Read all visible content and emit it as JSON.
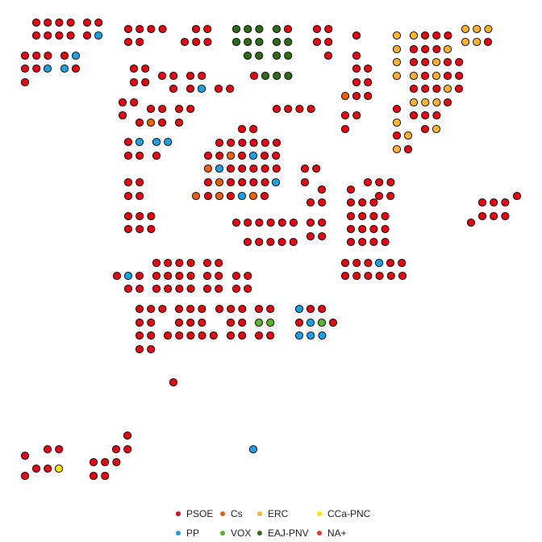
{
  "chart_data": {
    "type": "scatter",
    "description_kind": "dot map of Spanish Congress seats by province",
    "title": "",
    "xlabel": "",
    "ylabel": "",
    "grid": false,
    "axes_visible": false,
    "legend_position": "bottom-center",
    "dot_outline": "#000000",
    "parties": [
      {
        "name": "PSOE",
        "color": "#E30613"
      },
      {
        "name": "PP",
        "color": "#1BA1E2"
      },
      {
        "name": "Cs",
        "color": "#EB6109"
      },
      {
        "name": "VOX",
        "color": "#5AB12E"
      },
      {
        "name": "ERC",
        "color": "#FFB232"
      },
      {
        "name": "EAJ-PNV",
        "color": "#2E6B14"
      },
      {
        "name": "CCa-PNC",
        "color": "#FFE500"
      },
      {
        "name": "NA+",
        "color": "#E33B2E"
      }
    ],
    "rows": [
      {
        "y": 28,
        "x0": 45,
        "n": 4,
        "p": "PSOE"
      },
      {
        "y": 28,
        "x0": 108,
        "n": 2,
        "p": "PSOE"
      },
      {
        "y": 44,
        "x0": 45,
        "n": 4,
        "p": "PSOE"
      },
      {
        "y": 44,
        "x0": 108,
        "n": 1,
        "p": "PSOE"
      },
      {
        "y": 44,
        "x0": 122,
        "n": 1,
        "p": "PP"
      },
      {
        "y": 36,
        "x0": 159,
        "n": 4,
        "p": "PSOE"
      },
      {
        "y": 52,
        "x0": 159,
        "n": 2,
        "p": "PSOE"
      },
      {
        "y": 36,
        "x0": 243,
        "n": 2,
        "p": "PSOE"
      },
      {
        "y": 52,
        "x0": 229,
        "n": 3,
        "p": "PSOE"
      },
      {
        "y": 36,
        "x0": 293,
        "n": 3,
        "p": "EAJ-PNV"
      },
      {
        "y": 52,
        "x0": 293,
        "n": 3,
        "p": "EAJ-PNV"
      },
      {
        "y": 69,
        "x0": 307,
        "n": 2,
        "p": "EAJ-PNV"
      },
      {
        "y": 36,
        "x0": 343,
        "n": 1,
        "p": "EAJ-PNV"
      },
      {
        "y": 36,
        "x0": 357,
        "n": 1,
        "p": "PSOE"
      },
      {
        "y": 52,
        "x0": 343,
        "n": 2,
        "p": "EAJ-PNV"
      },
      {
        "y": 69,
        "x0": 343,
        "n": 2,
        "p": "EAJ-PNV"
      },
      {
        "y": 94,
        "x0": 315,
        "n": 1,
        "p": "PSOE"
      },
      {
        "y": 94,
        "x0": 329,
        "n": 3,
        "p": "EAJ-PNV"
      },
      {
        "y": 36,
        "x0": 393,
        "n": 2,
        "p": "PSOE"
      },
      {
        "y": 52,
        "x0": 393,
        "n": 2,
        "p": "PSOE"
      },
      {
        "y": 69,
        "x0": 407,
        "n": 1,
        "p": "PSOE"
      },
      {
        "y": 69,
        "x0": 31,
        "n": 3,
        "p": "PSOE"
      },
      {
        "y": 69,
        "x0": 80,
        "n": 1,
        "p": "PSOE"
      },
      {
        "y": 69,
        "x0": 94,
        "n": 1,
        "p": "PP"
      },
      {
        "y": 85,
        "x0": 31,
        "n": 2,
        "p": "PSOE"
      },
      {
        "y": 85,
        "x0": 59,
        "n": 1,
        "p": "PP"
      },
      {
        "y": 85,
        "x0": 80,
        "n": 1,
        "p": "PP"
      },
      {
        "y": 85,
        "x0": 94,
        "n": 1,
        "p": "PSOE"
      },
      {
        "y": 102,
        "x0": 31,
        "n": 1,
        "p": "PSOE"
      },
      {
        "y": 85,
        "x0": 166,
        "n": 2,
        "p": "PSOE"
      },
      {
        "y": 102,
        "x0": 166,
        "n": 2,
        "p": "PSOE"
      },
      {
        "y": 94,
        "x0": 201,
        "n": 2,
        "p": "PSOE"
      },
      {
        "y": 94,
        "x0": 236,
        "n": 2,
        "p": "PSOE"
      },
      {
        "y": 110,
        "x0": 215,
        "n": 1,
        "p": "PSOE"
      },
      {
        "y": 110,
        "x0": 236,
        "n": 1,
        "p": "PSOE"
      },
      {
        "y": 110,
        "x0": 250,
        "n": 1,
        "p": "PP"
      },
      {
        "y": 110,
        "x0": 271,
        "n": 2,
        "p": "PSOE"
      },
      {
        "y": 44,
        "x0": 442,
        "n": 1,
        "p": "PSOE"
      },
      {
        "y": 69,
        "x0": 442,
        "n": 1,
        "p": "PSOE"
      },
      {
        "y": 85,
        "x0": 442,
        "n": 2,
        "p": "PSOE"
      },
      {
        "y": 102,
        "x0": 442,
        "n": 2,
        "p": "PSOE"
      },
      {
        "y": 119,
        "x0": 428,
        "n": 1,
        "p": "Cs"
      },
      {
        "y": 119,
        "x0": 442,
        "n": 2,
        "p": "PSOE"
      },
      {
        "y": 143,
        "x0": 428,
        "n": 2,
        "p": "PSOE"
      },
      {
        "y": 160,
        "x0": 428,
        "n": 1,
        "p": "PSOE"
      },
      {
        "y": 44,
        "x0": 492,
        "n": 1,
        "p": "ERC"
      },
      {
        "y": 44,
        "x0": 513,
        "n": 1,
        "p": "ERC"
      },
      {
        "y": 44,
        "x0": 527,
        "n": 3,
        "p": "PSOE"
      },
      {
        "y": 36,
        "x0": 577,
        "n": 3,
        "p": "ERC"
      },
      {
        "y": 52,
        "x0": 577,
        "n": 2,
        "p": "ERC"
      },
      {
        "y": 52,
        "x0": 605,
        "n": 1,
        "p": "PSOE"
      },
      {
        "y": 61,
        "x0": 492,
        "n": 1,
        "p": "ERC"
      },
      {
        "y": 61,
        "x0": 513,
        "n": 3,
        "p": "PSOE"
      },
      {
        "y": 61,
        "x0": 555,
        "n": 1,
        "p": "ERC"
      },
      {
        "y": 77,
        "x0": 492,
        "n": 1,
        "p": "ERC"
      },
      {
        "y": 77,
        "x0": 513,
        "n": 2,
        "p": "PSOE"
      },
      {
        "y": 77,
        "x0": 541,
        "n": 1,
        "p": "ERC"
      },
      {
        "y": 77,
        "x0": 555,
        "n": 2,
        "p": "PSOE"
      },
      {
        "y": 94,
        "x0": 492,
        "n": 1,
        "p": "ERC"
      },
      {
        "y": 94,
        "x0": 513,
        "n": 1,
        "p": "ERC"
      },
      {
        "y": 94,
        "x0": 527,
        "n": 1,
        "p": "PSOE"
      },
      {
        "y": 94,
        "x0": 541,
        "n": 1,
        "p": "ERC"
      },
      {
        "y": 94,
        "x0": 555,
        "n": 2,
        "p": "PSOE"
      },
      {
        "y": 110,
        "x0": 513,
        "n": 3,
        "p": "PSOE"
      },
      {
        "y": 110,
        "x0": 555,
        "n": 1,
        "p": "ERC"
      },
      {
        "y": 110,
        "x0": 569,
        "n": 1,
        "p": "PSOE"
      },
      {
        "y": 127,
        "x0": 513,
        "n": 3,
        "p": "ERC"
      },
      {
        "y": 127,
        "x0": 555,
        "n": 1,
        "p": "PSOE"
      },
      {
        "y": 135,
        "x0": 492,
        "n": 1,
        "p": "PSOE"
      },
      {
        "y": 143,
        "x0": 513,
        "n": 3,
        "p": "PSOE"
      },
      {
        "y": 152,
        "x0": 492,
        "n": 1,
        "p": "ERC"
      },
      {
        "y": 160,
        "x0": 527,
        "n": 1,
        "p": "PSOE"
      },
      {
        "y": 160,
        "x0": 541,
        "n": 1,
        "p": "ERC"
      },
      {
        "y": 168,
        "x0": 492,
        "n": 1,
        "p": "PSOE"
      },
      {
        "y": 168,
        "x0": 506,
        "n": 1,
        "p": "ERC"
      },
      {
        "y": 185,
        "x0": 492,
        "n": 1,
        "p": "ERC"
      },
      {
        "y": 185,
        "x0": 506,
        "n": 1,
        "p": "PSOE"
      },
      {
        "y": 127,
        "x0": 152,
        "n": 2,
        "p": "PSOE"
      },
      {
        "y": 143,
        "x0": 152,
        "n": 1,
        "p": "PSOE"
      },
      {
        "y": 135,
        "x0": 187,
        "n": 2,
        "p": "PSOE"
      },
      {
        "y": 135,
        "x0": 222,
        "n": 2,
        "p": "PSOE"
      },
      {
        "y": 152,
        "x0": 173,
        "n": 1,
        "p": "PSOE"
      },
      {
        "y": 152,
        "x0": 187,
        "n": 1,
        "p": "Cs"
      },
      {
        "y": 152,
        "x0": 201,
        "n": 1,
        "p": "PSOE"
      },
      {
        "y": 152,
        "x0": 222,
        "n": 1,
        "p": "PSOE"
      },
      {
        "y": 135,
        "x0": 343,
        "n": 4,
        "p": "PSOE"
      },
      {
        "y": 176,
        "x0": 159,
        "n": 1,
        "p": "PSOE"
      },
      {
        "y": 176,
        "x0": 173,
        "n": 1,
        "p": "PP"
      },
      {
        "y": 176,
        "x0": 194,
        "n": 2,
        "p": "PP"
      },
      {
        "y": 193,
        "x0": 159,
        "n": 2,
        "p": "PSOE"
      },
      {
        "y": 193,
        "x0": 194,
        "n": 1,
        "p": "PSOE"
      },
      {
        "y": 160,
        "x0": 300,
        "n": 2,
        "p": "PSOE"
      },
      {
        "y": 177,
        "x0": 272,
        "n": 6,
        "p": "PSOE"
      },
      {
        "y": 193,
        "x0": 258,
        "n": 2,
        "p": "PSOE"
      },
      {
        "y": 193,
        "x0": 286,
        "n": 1,
        "p": "Cs"
      },
      {
        "y": 193,
        "x0": 300,
        "n": 1,
        "p": "PSOE"
      },
      {
        "y": 193,
        "x0": 314,
        "n": 1,
        "p": "PP"
      },
      {
        "y": 193,
        "x0": 328,
        "n": 2,
        "p": "PSOE"
      },
      {
        "y": 209,
        "x0": 258,
        "n": 1,
        "p": "Cs"
      },
      {
        "y": 209,
        "x0": 272,
        "n": 1,
        "p": "PP"
      },
      {
        "y": 209,
        "x0": 286,
        "n": 5,
        "p": "PSOE"
      },
      {
        "y": 226,
        "x0": 258,
        "n": 1,
        "p": "PSOE"
      },
      {
        "y": 226,
        "x0": 272,
        "n": 1,
        "p": "Cs"
      },
      {
        "y": 226,
        "x0": 286,
        "n": 4,
        "p": "PSOE"
      },
      {
        "y": 226,
        "x0": 342,
        "n": 1,
        "p": "PP"
      },
      {
        "y": 243,
        "x0": 243,
        "n": 1,
        "p": "Cs"
      },
      {
        "y": 243,
        "x0": 258,
        "n": 1,
        "p": "PSOE"
      },
      {
        "y": 243,
        "x0": 272,
        "n": 1,
        "p": "Cs"
      },
      {
        "y": 243,
        "x0": 286,
        "n": 1,
        "p": "PSOE"
      },
      {
        "y": 243,
        "x0": 300,
        "n": 1,
        "p": "PP"
      },
      {
        "y": 243,
        "x0": 314,
        "n": 1,
        "p": "Cs"
      },
      {
        "y": 243,
        "x0": 328,
        "n": 1,
        "p": "PSOE"
      },
      {
        "y": 209,
        "x0": 378,
        "n": 2,
        "p": "PSOE"
      },
      {
        "y": 226,
        "x0": 378,
        "n": 1,
        "p": "PSOE"
      },
      {
        "y": 235,
        "x0": 399,
        "n": 1,
        "p": "PSOE"
      },
      {
        "y": 251,
        "x0": 385,
        "n": 2,
        "p": "PSOE"
      },
      {
        "y": 226,
        "x0": 159,
        "n": 2,
        "p": "PSOE"
      },
      {
        "y": 243,
        "x0": 159,
        "n": 2,
        "p": "PSOE"
      },
      {
        "y": 268,
        "x0": 159,
        "n": 3,
        "p": "PSOE"
      },
      {
        "y": 284,
        "x0": 159,
        "n": 3,
        "p": "PSOE"
      },
      {
        "y": 276,
        "x0": 293,
        "n": 6,
        "p": "PSOE"
      },
      {
        "y": 300,
        "x0": 307,
        "n": 5,
        "p": "PSOE"
      },
      {
        "y": 276,
        "x0": 385,
        "n": 2,
        "p": "PSOE"
      },
      {
        "y": 293,
        "x0": 385,
        "n": 2,
        "p": "PSOE"
      },
      {
        "y": 226,
        "x0": 456,
        "n": 3,
        "p": "PSOE"
      },
      {
        "y": 235,
        "x0": 435,
        "n": 1,
        "p": "PSOE"
      },
      {
        "y": 243,
        "x0": 470,
        "n": 2,
        "p": "PSOE"
      },
      {
        "y": 251,
        "x0": 435,
        "n": 3,
        "p": "PSOE"
      },
      {
        "y": 268,
        "x0": 435,
        "n": 4,
        "p": "PSOE"
      },
      {
        "y": 284,
        "x0": 435,
        "n": 4,
        "p": "PSOE"
      },
      {
        "y": 300,
        "x0": 435,
        "n": 4,
        "p": "PSOE"
      },
      {
        "y": 243,
        "x0": 641,
        "n": 1,
        "p": "PSOE"
      },
      {
        "y": 251,
        "x0": 598,
        "n": 3,
        "p": "PSOE"
      },
      {
        "y": 268,
        "x0": 598,
        "n": 3,
        "p": "PSOE"
      },
      {
        "y": 276,
        "x0": 584,
        "n": 1,
        "p": "PSOE"
      },
      {
        "y": 326,
        "x0": 428,
        "n": 3,
        "p": "PSOE"
      },
      {
        "y": 326,
        "x0": 470,
        "n": 1,
        "p": "PP"
      },
      {
        "y": 326,
        "x0": 484,
        "n": 2,
        "p": "PSOE"
      },
      {
        "y": 342,
        "x0": 428,
        "n": 6,
        "p": "PSOE"
      },
      {
        "y": 326,
        "x0": 194,
        "n": 4,
        "p": "PSOE"
      },
      {
        "y": 326,
        "x0": 257,
        "n": 2,
        "p": "PSOE"
      },
      {
        "y": 342,
        "x0": 145,
        "n": 1,
        "p": "PSOE"
      },
      {
        "y": 342,
        "x0": 159,
        "n": 1,
        "p": "PP"
      },
      {
        "y": 342,
        "x0": 173,
        "n": 1,
        "p": "PSOE"
      },
      {
        "y": 342,
        "x0": 194,
        "n": 4,
        "p": "PSOE"
      },
      {
        "y": 342,
        "x0": 257,
        "n": 2,
        "p": "PSOE"
      },
      {
        "y": 342,
        "x0": 293,
        "n": 2,
        "p": "PSOE"
      },
      {
        "y": 358,
        "x0": 159,
        "n": 2,
        "p": "PSOE"
      },
      {
        "y": 358,
        "x0": 194,
        "n": 4,
        "p": "PSOE"
      },
      {
        "y": 358,
        "x0": 257,
        "n": 2,
        "p": "PSOE"
      },
      {
        "y": 358,
        "x0": 293,
        "n": 2,
        "p": "PSOE"
      },
      {
        "y": 383,
        "x0": 173,
        "n": 3,
        "p": "PSOE"
      },
      {
        "y": 383,
        "x0": 222,
        "n": 3,
        "p": "PSOE"
      },
      {
        "y": 383,
        "x0": 272,
        "n": 3,
        "p": "PSOE"
      },
      {
        "y": 383,
        "x0": 321,
        "n": 2,
        "p": "PSOE"
      },
      {
        "y": 383,
        "x0": 371,
        "n": 1,
        "p": "PP"
      },
      {
        "y": 383,
        "x0": 385,
        "n": 2,
        "p": "PSOE"
      },
      {
        "y": 400,
        "x0": 173,
        "n": 2,
        "p": "PSOE"
      },
      {
        "y": 400,
        "x0": 222,
        "n": 3,
        "p": "PSOE"
      },
      {
        "y": 400,
        "x0": 286,
        "n": 2,
        "p": "PSOE"
      },
      {
        "y": 400,
        "x0": 321,
        "n": 2,
        "p": "VOX"
      },
      {
        "y": 400,
        "x0": 371,
        "n": 1,
        "p": "PSOE"
      },
      {
        "y": 400,
        "x0": 385,
        "n": 1,
        "p": "PP"
      },
      {
        "y": 400,
        "x0": 399,
        "n": 1,
        "p": "VOX"
      },
      {
        "y": 400,
        "x0": 413,
        "n": 1,
        "p": "PSOE"
      },
      {
        "y": 416,
        "x0": 173,
        "n": 2,
        "p": "PSOE"
      },
      {
        "y": 416,
        "x0": 208,
        "n": 5,
        "p": "PSOE"
      },
      {
        "y": 416,
        "x0": 286,
        "n": 2,
        "p": "PSOE"
      },
      {
        "y": 416,
        "x0": 321,
        "n": 2,
        "p": "PSOE"
      },
      {
        "y": 416,
        "x0": 371,
        "n": 3,
        "p": "PP"
      },
      {
        "y": 433,
        "x0": 173,
        "n": 2,
        "p": "PSOE"
      },
      {
        "y": 474,
        "x0": 215,
        "n": 1,
        "p": "PSOE"
      },
      {
        "y": 540,
        "x0": 158,
        "n": 1,
        "p": "PSOE"
      },
      {
        "y": 557,
        "x0": 144,
        "n": 2,
        "p": "PSOE"
      },
      {
        "y": 557,
        "x0": 59,
        "n": 2,
        "p": "PSOE"
      },
      {
        "y": 565,
        "x0": 31,
        "n": 1,
        "p": "PSOE"
      },
      {
        "y": 573,
        "x0": 116,
        "n": 3,
        "p": "PSOE"
      },
      {
        "y": 581,
        "x0": 45,
        "n": 2,
        "p": "PSOE"
      },
      {
        "y": 581,
        "x0": 73,
        "n": 1,
        "p": "CCa-PNC"
      },
      {
        "y": 590,
        "x0": 31,
        "n": 1,
        "p": "PSOE"
      },
      {
        "y": 590,
        "x0": 116,
        "n": 2,
        "p": "PSOE"
      },
      {
        "y": 557,
        "x0": 314,
        "n": 1,
        "p": "PP"
      }
    ],
    "legend_entries": [
      {
        "label": "PSOE",
        "party": "PSOE"
      },
      {
        "label": "Cs",
        "party": "Cs"
      },
      {
        "label": "ERC",
        "party": "ERC"
      },
      {
        "label": "CCa-PNC",
        "party": "CCa-PNC"
      },
      {
        "label": "PP",
        "party": "PP"
      },
      {
        "label": "VOX",
        "party": "VOX"
      },
      {
        "label": "EAJ-PNV",
        "party": "EAJ-PNV"
      },
      {
        "label": "NA+",
        "party": "NA+"
      }
    ]
  }
}
